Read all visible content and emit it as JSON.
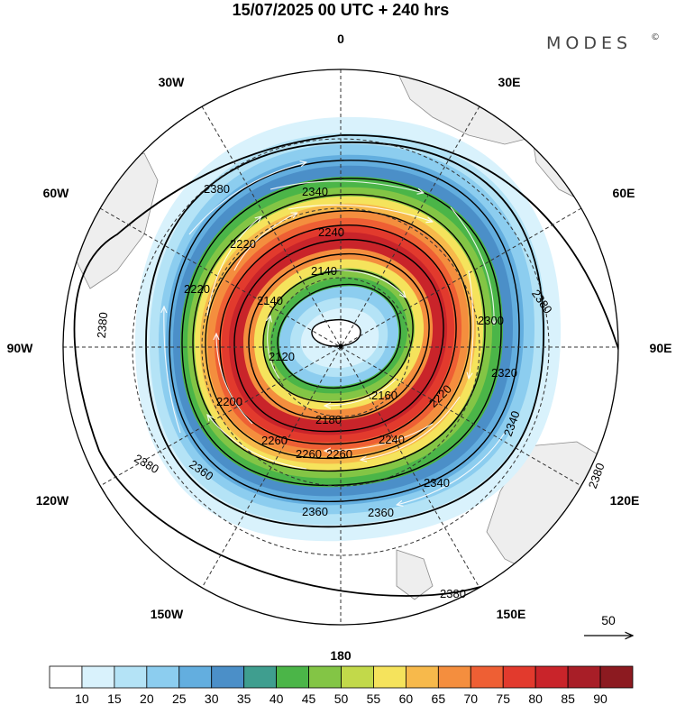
{
  "title": "15/07/2025  00 UTC  + 240 hrs",
  "brand": "MODES",
  "brand_mark": "©",
  "longitude_labels": [
    {
      "id": "0",
      "text": "0"
    },
    {
      "id": "30e",
      "text": "30E"
    },
    {
      "id": "60e",
      "text": "60E"
    },
    {
      "id": "90e",
      "text": "90E"
    },
    {
      "id": "120e",
      "text": "120E"
    },
    {
      "id": "150e",
      "text": "150E"
    },
    {
      "id": "180",
      "text": "180"
    },
    {
      "id": "150w",
      "text": "150W"
    },
    {
      "id": "120w",
      "text": "120W"
    },
    {
      "id": "90w",
      "text": "90W"
    },
    {
      "id": "60w",
      "text": "60W"
    },
    {
      "id": "30w",
      "text": "30W"
    }
  ],
  "contour_labels": [
    "2380",
    "2340",
    "2240",
    "2220",
    "2220",
    "2140",
    "2140",
    "2120",
    "2200",
    "2260",
    "2300",
    "2320",
    "2380",
    "2380",
    "2380",
    "2380",
    "2380",
    "2360",
    "2360",
    "2360",
    "2340",
    "2340",
    "2260",
    "2260",
    "2240",
    "2220",
    "2180",
    "2160"
  ],
  "reference_vector": {
    "label": "50"
  },
  "colorbar": {
    "ticks": [
      "10",
      "15",
      "20",
      "25",
      "30",
      "35",
      "40",
      "45",
      "50",
      "55",
      "60",
      "65",
      "70",
      "75",
      "80",
      "85",
      "90"
    ],
    "colors": [
      "#ffffff",
      "#d9f2fc",
      "#b4e3f6",
      "#8ccdef",
      "#63aedf",
      "#4b8fc8",
      "#3f9e8f",
      "#4bb548",
      "#83c545",
      "#c2d94a",
      "#f5e35c",
      "#f7b94b",
      "#f48e3e",
      "#ee5f34",
      "#e23a2d",
      "#c9242a",
      "#a81e27",
      "#8c1a20"
    ]
  }
}
